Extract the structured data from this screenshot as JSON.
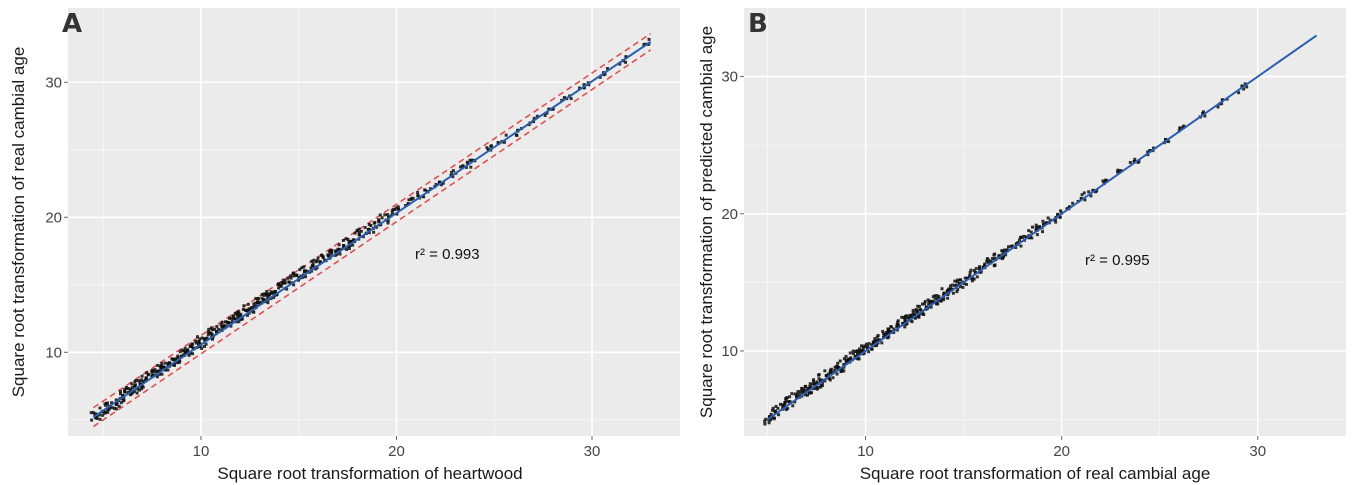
{
  "chart_data": [
    {
      "panel": "A",
      "type": "scatter",
      "xlabel": "Square root transformation of heartwood",
      "ylabel": "Square root transformation of real cambial age",
      "xlim": [
        3.2,
        34.5
      ],
      "ylim": [
        3.8,
        35.5
      ],
      "xticks": [
        10,
        20,
        30
      ],
      "yticks": [
        10,
        20,
        30
      ],
      "grid": true,
      "annotation": "r² = 0.993",
      "fit_line": {
        "x": [
          4.5,
          33.0
        ],
        "y": [
          5.2,
          33.0
        ],
        "color": "#2b5fad"
      },
      "confidence_band": {
        "upper": {
          "x": [
            4.5,
            33.0
          ],
          "y": [
            5.9,
            33.6
          ]
        },
        "lower": {
          "x": [
            4.5,
            33.0
          ],
          "y": [
            4.5,
            32.4
          ]
        },
        "color": "#e05050",
        "style": "dashed"
      },
      "series": [
        {
          "kind": "points",
          "color": "#111111",
          "x": [
            4.6,
            5.0,
            5.3,
            5.7,
            6.0,
            6.3,
            6.6,
            6.9,
            7.2,
            7.5,
            7.8,
            8.1,
            8.4,
            8.7,
            9.0,
            9.3,
            9.6,
            9.9,
            10.2,
            10.5,
            10.8,
            11.1,
            11.4,
            11.7,
            12.0,
            12.3,
            12.6,
            12.9,
            13.2,
            13.5,
            13.8,
            14.1,
            14.5,
            14.9,
            15.3,
            15.7,
            16.1,
            16.5,
            16.9,
            17.3,
            17.7,
            18.1,
            18.6,
            19.1,
            19.6,
            20.1,
            20.6,
            21.1,
            21.6,
            22.2,
            22.8,
            23.4,
            24.0,
            24.7,
            25.4,
            26.2,
            27.0,
            27.8,
            28.7,
            29.6,
            30.6,
            31.6,
            32.7
          ],
          "y": [
            5.4,
            5.6,
            6.0,
            6.2,
            6.8,
            7.0,
            7.5,
            7.6,
            8.1,
            8.2,
            8.6,
            8.9,
            9.2,
            9.5,
            9.7,
            10.1,
            10.3,
            10.8,
            10.9,
            11.4,
            11.5,
            11.9,
            12.2,
            12.5,
            12.7,
            13.1,
            13.3,
            13.7,
            13.9,
            14.3,
            14.5,
            14.9,
            15.2,
            15.7,
            16.0,
            16.4,
            16.7,
            17.2,
            17.5,
            17.9,
            18.2,
            18.7,
            19.1,
            19.7,
            20.0,
            20.6,
            21.0,
            21.6,
            21.9,
            22.6,
            23.1,
            23.8,
            24.2,
            25.0,
            25.6,
            26.4,
            27.1,
            28.0,
            28.8,
            29.6,
            30.7,
            31.6,
            32.8
          ]
        }
      ]
    },
    {
      "panel": "B",
      "type": "scatter",
      "xlabel": "Square root transformation of real cambial age",
      "ylabel": "Square root transformation of predicted cambial age",
      "xlim": [
        3.8,
        34.5
      ],
      "ylim": [
        3.8,
        35.0
      ],
      "xticks": [
        10,
        20,
        30
      ],
      "yticks": [
        10,
        20,
        30
      ],
      "grid": true,
      "annotation": "r² = 0.995",
      "fit_line": {
        "x": [
          5.0,
          33.0
        ],
        "y": [
          5.0,
          33.0
        ],
        "color": "#2b5fad"
      },
      "series": [
        {
          "kind": "points",
          "color": "#111111",
          "x": [
            5.1,
            5.4,
            5.8,
            6.1,
            6.5,
            6.8,
            7.1,
            7.4,
            7.7,
            8.0,
            8.3,
            8.6,
            8.9,
            9.2,
            9.5,
            9.8,
            10.1,
            10.4,
            10.7,
            11.0,
            11.3,
            11.6,
            11.9,
            12.2,
            12.5,
            12.8,
            13.1,
            13.4,
            13.7,
            14.0,
            14.4,
            14.8,
            15.2,
            15.6,
            16.0,
            16.4,
            16.8,
            17.2,
            17.7,
            18.2,
            18.7,
            19.2,
            19.8,
            20.4,
            21.0,
            21.6,
            22.3,
            23.0,
            23.7,
            24.5,
            25.3,
            26.2,
            27.2,
            28.2,
            29.2
          ],
          "y": [
            5.2,
            5.6,
            5.9,
            6.3,
            6.6,
            7.0,
            7.2,
            7.6,
            7.8,
            8.2,
            8.4,
            8.8,
            9.0,
            9.4,
            9.6,
            10.0,
            10.2,
            10.6,
            10.8,
            11.2,
            11.4,
            11.8,
            12.0,
            12.4,
            12.6,
            13.0,
            13.2,
            13.6,
            13.8,
            14.2,
            14.5,
            14.9,
            15.3,
            15.7,
            16.1,
            16.5,
            16.9,
            17.3,
            17.8,
            18.3,
            18.8,
            19.3,
            19.9,
            20.5,
            21.1,
            21.7,
            22.4,
            23.1,
            23.8,
            24.6,
            25.4,
            26.3,
            27.3,
            28.3,
            29.3
          ]
        }
      ]
    }
  ],
  "colors": {
    "panel_bg": "#ebebeb",
    "grid": "#ffffff",
    "fit": "#2b5fad",
    "band": "#e05050",
    "point": "#111111"
  }
}
